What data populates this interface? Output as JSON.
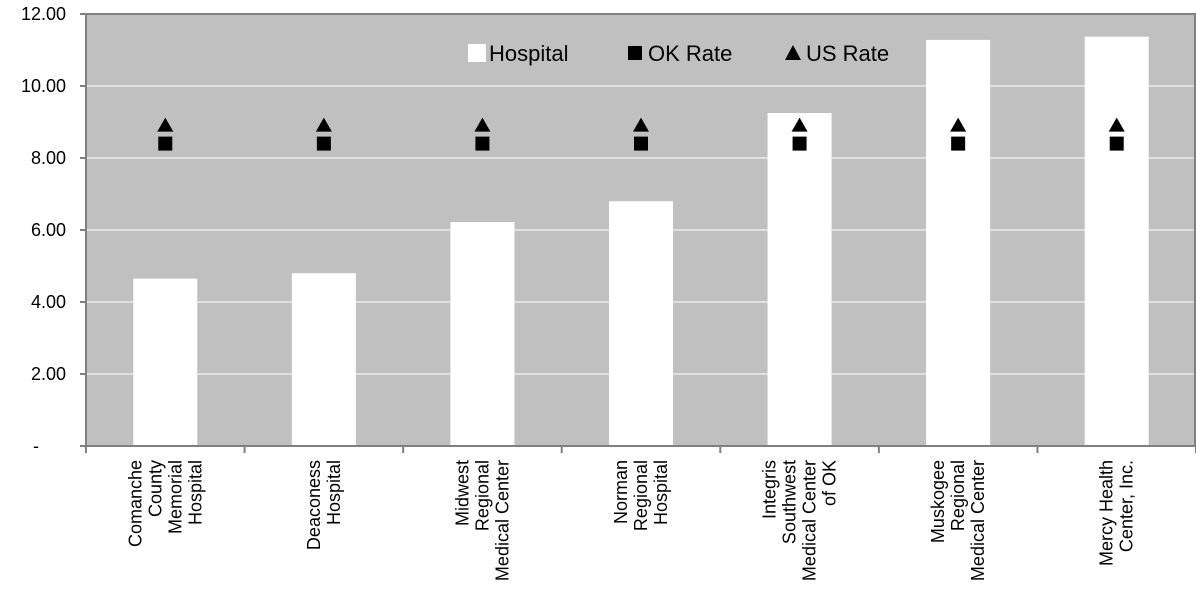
{
  "chart_data": {
    "type": "bar",
    "categories": [
      [
        "Comanche",
        "County",
        "Memorial",
        "Hospital"
      ],
      [
        "Deaconess",
        "Hospital"
      ],
      [
        "Midwest",
        "Regional",
        "Medical Center"
      ],
      [
        "Norman",
        "Regional",
        "Hospital"
      ],
      [
        "Integris",
        "Southwest",
        "Medical Center",
        "of OK"
      ],
      [
        "Muskogee",
        "Regional",
        "Medical Center"
      ],
      [
        "Mercy Health",
        "Center, Inc."
      ]
    ],
    "series": [
      {
        "name": "Hospital",
        "kind": "bar",
        "values": [
          4.65,
          4.8,
          6.22,
          6.8,
          9.25,
          11.28,
          11.37
        ]
      },
      {
        "name": "OK Rate",
        "kind": "square-marker",
        "values": [
          8.4,
          8.4,
          8.4,
          8.4,
          8.4,
          8.4,
          8.4
        ]
      },
      {
        "name": "US Rate",
        "kind": "triangle-marker",
        "values": [
          8.9,
          8.9,
          8.9,
          8.9,
          8.9,
          8.9,
          8.9
        ]
      }
    ],
    "ylim": [
      0,
      12
    ],
    "yticks": [
      {
        "value": 0,
        "label": "-"
      },
      {
        "value": 2,
        "label": "2.00"
      },
      {
        "value": 4,
        "label": "4.00"
      },
      {
        "value": 6,
        "label": "6.00"
      },
      {
        "value": 8,
        "label": "8.00"
      },
      {
        "value": 10,
        "label": "10.00"
      },
      {
        "value": 12,
        "label": "12.00"
      }
    ],
    "grid": true,
    "legend_position": "top-right",
    "colors": {
      "plot_background": "#c0c0c0",
      "bar": "#ffffff",
      "marker": "#000000",
      "grid": "#ffffff",
      "axis": "#808080"
    }
  }
}
